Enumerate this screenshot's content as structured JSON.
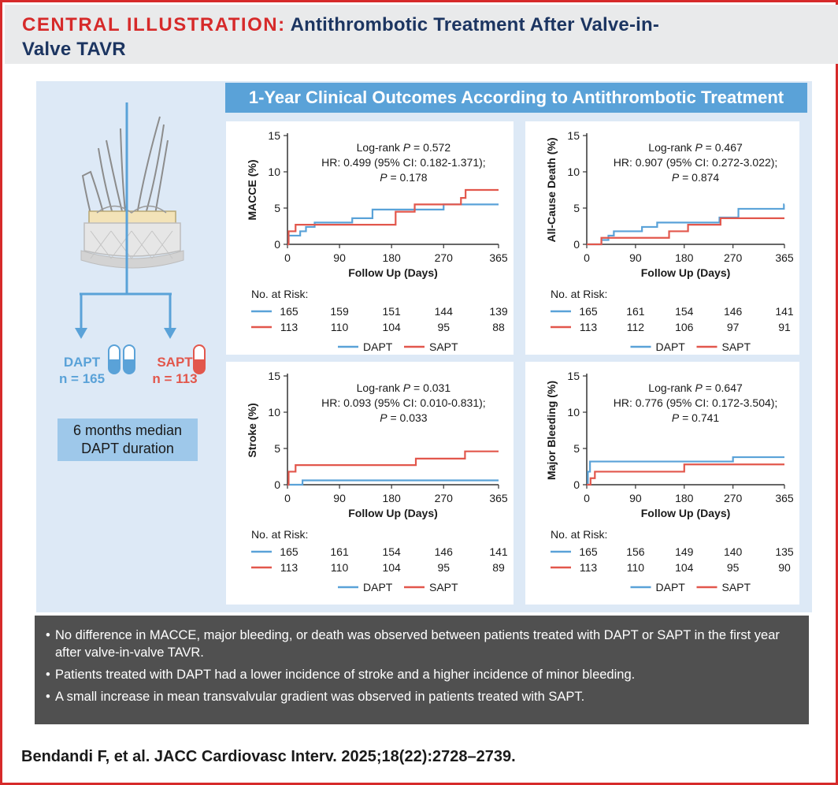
{
  "header": {
    "label": "CENTRAL ILLUSTRATION:",
    "title_line1": " Antithrombotic Treatment After Valve-in-",
    "title_line2": "Valve TAVR"
  },
  "outcomes_title": "1-Year Clinical Outcomes According to Antithrombotic Treatment",
  "groups": {
    "dapt": {
      "name": "DAPT",
      "n": "n = 165"
    },
    "sapt": {
      "name": "SAPT",
      "n": "n = 113"
    }
  },
  "median_box": {
    "line1": "6 months median",
    "line2": "DAPT duration"
  },
  "colors": {
    "dapt": "#5aa2d8",
    "sapt": "#e2574c",
    "accent": "#d62a2a",
    "navy": "#1c3561"
  },
  "chart_data": [
    {
      "type": "line",
      "step": true,
      "ylabel": "MACCE (%)",
      "xlabel": "Follow Up (Days)",
      "ylim": [
        0,
        15
      ],
      "yticks": [
        0,
        5,
        10,
        15
      ],
      "xlim": [
        0,
        365
      ],
      "xticks": [
        0,
        90,
        180,
        270,
        365
      ],
      "stat_line1_prefix": "Log-rank ",
      "stat_line1_p": "P",
      "stat_line1_val": " = 0.572",
      "stat_line2": "HR: 0.499 (95% CI: 0.182-1.371);",
      "stat_line3_p": "P",
      "stat_line3_val": " = 0.178",
      "series": [
        {
          "name": "DAPT",
          "x": [
            0,
            2,
            20,
            22,
            30,
            32,
            45,
            47,
            110,
            112,
            145,
            147,
            268,
            270,
            365
          ],
          "values": [
            0,
            1.2,
            1.2,
            1.8,
            1.8,
            2.4,
            2.4,
            3.0,
            3.0,
            3.6,
            3.6,
            4.8,
            4.8,
            5.5,
            5.5
          ]
        },
        {
          "name": "SAPT",
          "x": [
            0,
            2,
            12,
            14,
            185,
            187,
            218,
            220,
            298,
            300,
            306,
            308,
            365
          ],
          "values": [
            0,
            1.8,
            1.8,
            2.7,
            2.7,
            4.5,
            4.5,
            5.5,
            5.5,
            6.4,
            6.4,
            7.5,
            7.5
          ]
        }
      ],
      "risk_label": "No. at Risk:",
      "risk": [
        {
          "name": "DAPT",
          "values": [
            "165",
            "159",
            "151",
            "144",
            "139"
          ]
        },
        {
          "name": "SAPT",
          "values": [
            "113",
            "110",
            "104",
            "95",
            "88"
          ]
        }
      ],
      "legend": [
        "DAPT",
        "SAPT"
      ]
    },
    {
      "type": "line",
      "step": true,
      "ylabel": "All-Cause Death (%)",
      "xlabel": "Follow Up (Days)",
      "ylim": [
        0,
        15
      ],
      "yticks": [
        0,
        5,
        10,
        15
      ],
      "xlim": [
        0,
        365
      ],
      "xticks": [
        0,
        90,
        180,
        270,
        365
      ],
      "stat_line1_prefix": "Log-rank ",
      "stat_line1_p": "P",
      "stat_line1_val": " = 0.467",
      "stat_line2": "HR: 0.907 (95% CI: 0.272-3.022);",
      "stat_line3_p": "P",
      "stat_line3_val": " = 0.874",
      "series": [
        {
          "name": "DAPT",
          "x": [
            0,
            25,
            27,
            38,
            40,
            48,
            50,
            100,
            102,
            128,
            130,
            243,
            245,
            278,
            280,
            362,
            364,
            365
          ],
          "values": [
            0,
            0,
            0.6,
            0.6,
            1.2,
            1.2,
            1.8,
            1.8,
            2.4,
            2.4,
            3.0,
            3.0,
            3.7,
            3.7,
            4.9,
            4.9,
            5.5,
            5.5
          ]
        },
        {
          "name": "SAPT",
          "x": [
            0,
            25,
            27,
            150,
            152,
            185,
            187,
            223,
            225,
            245,
            247,
            365
          ],
          "values": [
            0,
            0,
            0.9,
            0.9,
            1.8,
            1.8,
            2.7,
            2.7,
            2.7,
            2.7,
            3.6,
            3.6
          ]
        }
      ],
      "risk_label": "No. at Risk:",
      "risk": [
        {
          "name": "DAPT",
          "values": [
            "165",
            "161",
            "154",
            "146",
            "141"
          ]
        },
        {
          "name": "SAPT",
          "values": [
            "113",
            "112",
            "106",
            "97",
            "91"
          ]
        }
      ],
      "legend": [
        "DAPT",
        "SAPT"
      ]
    },
    {
      "type": "line",
      "step": true,
      "ylabel": "Stroke (%)",
      "xlabel": "Follow Up (Days)",
      "ylim": [
        0,
        15
      ],
      "yticks": [
        0,
        5,
        10,
        15
      ],
      "xlim": [
        0,
        365
      ],
      "xticks": [
        0,
        90,
        180,
        270,
        365
      ],
      "stat_line1_prefix": "Log-rank ",
      "stat_line1_p": "P",
      "stat_line1_val": " = 0.031",
      "stat_line2": "HR: 0.093 (95% CI: 0.010-0.831);",
      "stat_line3_p": "P",
      "stat_line3_val": " = 0.033",
      "series": [
        {
          "name": "DAPT",
          "x": [
            0,
            24,
            26,
            365
          ],
          "values": [
            0,
            0,
            0.6,
            0.6
          ]
        },
        {
          "name": "SAPT",
          "x": [
            0,
            2,
            12,
            14,
            220,
            222,
            305,
            307,
            365
          ],
          "values": [
            0,
            1.8,
            1.8,
            2.7,
            2.7,
            3.6,
            3.6,
            4.6,
            4.6
          ]
        }
      ],
      "risk_label": "No. at Risk:",
      "risk": [
        {
          "name": "DAPT",
          "values": [
            "165",
            "161",
            "154",
            "146",
            "141"
          ]
        },
        {
          "name": "SAPT",
          "values": [
            "113",
            "110",
            "104",
            "95",
            "89"
          ]
        }
      ],
      "legend": [
        "DAPT",
        "SAPT"
      ]
    },
    {
      "type": "line",
      "step": true,
      "ylabel": "Major Bleeding (%)",
      "xlabel": "Follow Up (Days)",
      "ylim": [
        0,
        15
      ],
      "yticks": [
        0,
        5,
        10,
        15
      ],
      "xlim": [
        0,
        365
      ],
      "xticks": [
        0,
        90,
        180,
        270,
        365
      ],
      "stat_line1_prefix": "Log-rank ",
      "stat_line1_p": "P",
      "stat_line1_val": " = 0.647",
      "stat_line2": "HR: 0.776 (95% CI: 0.172-3.504);",
      "stat_line3_p": "P",
      "stat_line3_val": " = 0.741",
      "series": [
        {
          "name": "DAPT",
          "x": [
            0,
            2,
            4,
            6,
            268,
            270,
            365
          ],
          "values": [
            0,
            1.8,
            1.8,
            3.2,
            3.2,
            3.8,
            3.8
          ]
        },
        {
          "name": "SAPT",
          "x": [
            0,
            5,
            7,
            13,
            15,
            178,
            180,
            365
          ],
          "values": [
            0,
            0,
            0.9,
            0.9,
            1.8,
            1.8,
            2.8,
            2.8
          ]
        }
      ],
      "risk_label": "No. at Risk:",
      "risk": [
        {
          "name": "DAPT",
          "values": [
            "165",
            "156",
            "149",
            "140",
            "135"
          ]
        },
        {
          "name": "SAPT",
          "values": [
            "113",
            "110",
            "104",
            "95",
            "90"
          ]
        }
      ],
      "legend": [
        "DAPT",
        "SAPT"
      ]
    }
  ],
  "summary": [
    "No difference in MACCE, major bleeding, or death was observed between patients treated with DAPT or SAPT in the first year after valve-in-valve TAVR.",
    "Patients treated with DAPT had a lower incidence of stroke and a higher incidence of minor bleeding.",
    "A small increase in mean transvalvular gradient was observed in patients treated with SAPT."
  ],
  "bullet_char": "•",
  "citation": "Bendandi F, et al. JACC Cardiovasc Interv. 2025;18(22):2728–2739."
}
